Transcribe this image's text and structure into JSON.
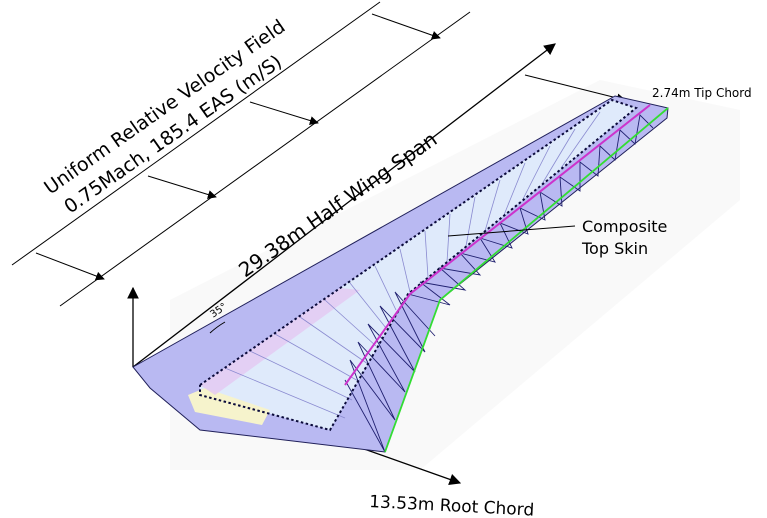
{
  "labels": {
    "velocity_line1": "Uniform Relative Velocity Field",
    "velocity_line2": "0.75Mach, 185.4 EAS (m/S)",
    "half_span": "29.38m Half Wing Span",
    "tip_chord": "2.74m Tip Chord",
    "root_chord": "13.53m Root Chord",
    "skin_line1": "Composite",
    "skin_line2": "Top Skin",
    "sweep_angle": "35°"
  },
  "colors": {
    "wing_fill": "#b9b9f2",
    "skin_fill": "#e2eefc",
    "spar_outline": "#0a0a3a",
    "magenta_spar": "#cc33cc",
    "trailing_edge": "#33dd33",
    "rib_lines": "#3a3aa0"
  }
}
